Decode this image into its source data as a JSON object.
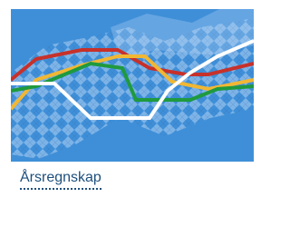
{
  "card": {
    "title": "Årsregnskap"
  }
}
